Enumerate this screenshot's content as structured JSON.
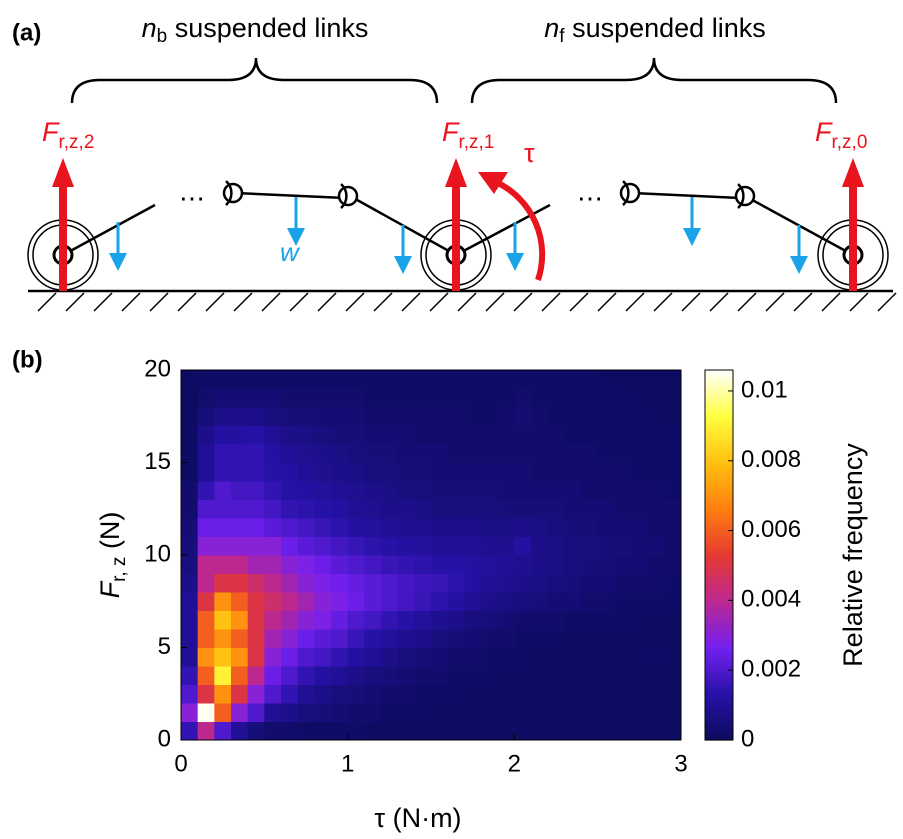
{
  "panel_a": {
    "label": "(a)",
    "left_group": {
      "symbol": "n",
      "sub": "b",
      "text": " suspended links"
    },
    "right_group": {
      "symbol": "n",
      "sub": "f",
      "text": " suspended links"
    },
    "forces": [
      {
        "symbol": "F",
        "sub": "r,z,2"
      },
      {
        "symbol": "F",
        "sub": "r,z,1"
      },
      {
        "symbol": "F",
        "sub": "r,z,0"
      }
    ],
    "torque": "τ",
    "weight": "w",
    "ellipsis": "⋯"
  },
  "chart_data": {
    "type": "heatmap",
    "panel_label": "(b)",
    "xlabel": "τ (N·m)",
    "ylabel": {
      "symbol": "F",
      "sub": "r, z",
      "unit": " (N)"
    },
    "colorbar_label": "Relative frequency",
    "xlim": [
      0,
      3
    ],
    "ylim": [
      0,
      20
    ],
    "xticks": [
      0,
      1,
      2,
      3
    ],
    "yticks": [
      0,
      5,
      10,
      15,
      20
    ],
    "clim": [
      0,
      0.0106
    ],
    "cticks": [
      0,
      0.002,
      0.004,
      0.006,
      0.008,
      0.01
    ],
    "colormap": [
      "#0b0b5c",
      "#2812a8",
      "#7420f0",
      "#bc2890",
      "#e63a30",
      "#ff8010",
      "#ffc010",
      "#ffff40",
      "#ffffff"
    ],
    "xbins": [
      0,
      0.1,
      0.2,
      0.3,
      0.4,
      0.5,
      0.6,
      0.7,
      0.8,
      0.9,
      1,
      1.1,
      1.2,
      1.3,
      1.4,
      1.5,
      1.6,
      1.7,
      1.8,
      1.9,
      2,
      2.1,
      2.2,
      2.3,
      2.4,
      2.5,
      2.6,
      2.7,
      2.8,
      2.9,
      3
    ],
    "ybins": [
      0,
      1,
      2,
      3,
      4,
      5,
      6,
      7,
      8,
      9,
      10,
      11,
      12,
      13,
      14,
      15,
      16,
      17,
      18,
      19,
      20
    ],
    "values": [
      [
        0.0015,
        0.003,
        0.002,
        0.0015,
        0.001,
        0.001,
        0.001,
        0.001,
        0.0008,
        0.0006,
        0.0005,
        0.0004,
        0.0003,
        0.0003,
        0.0002,
        0.0002,
        0.0002,
        0.0001,
        0.0001,
        0.0001
      ],
      [
        0.004,
        0.0105,
        0.005,
        0.006,
        0.007,
        0.006,
        0.006,
        0.005,
        0.004,
        0.004,
        0.003,
        0.0025,
        0.002,
        0.0015,
        0.001,
        0.001,
        0.0008,
        0.0005,
        0.0003,
        0.0002
      ],
      [
        0.002,
        0.006,
        0.007,
        0.009,
        0.008,
        0.007,
        0.008,
        0.007,
        0.005,
        0.004,
        0.003,
        0.0025,
        0.002,
        0.002,
        0.0015,
        0.0015,
        0.0012,
        0.0008,
        0.0004,
        0.0002
      ],
      [
        0.001,
        0.003,
        0.005,
        0.006,
        0.007,
        0.006,
        0.007,
        0.006,
        0.005,
        0.004,
        0.003,
        0.0025,
        0.002,
        0.0018,
        0.0015,
        0.0015,
        0.0012,
        0.0008,
        0.0004,
        0.0002
      ],
      [
        0.0005,
        0.002,
        0.003,
        0.004,
        0.005,
        0.005,
        0.005,
        0.005,
        0.0045,
        0.0035,
        0.003,
        0.0025,
        0.002,
        0.0018,
        0.0015,
        0.0015,
        0.0013,
        0.0008,
        0.0004,
        0.0002
      ],
      [
        0.0003,
        0.001,
        0.002,
        0.0025,
        0.003,
        0.0035,
        0.004,
        0.0045,
        0.004,
        0.0035,
        0.003,
        0.0022,
        0.0018,
        0.0015,
        0.0013,
        0.0012,
        0.001,
        0.0006,
        0.0004,
        0.0002
      ],
      [
        0.0003,
        0.0008,
        0.0015,
        0.002,
        0.0025,
        0.003,
        0.0035,
        0.004,
        0.0035,
        0.003,
        0.0025,
        0.002,
        0.0015,
        0.0013,
        0.0012,
        0.001,
        0.0008,
        0.0005,
        0.0003,
        0.0002
      ],
      [
        0.0002,
        0.0006,
        0.001,
        0.0015,
        0.002,
        0.0025,
        0.003,
        0.0035,
        0.003,
        0.0028,
        0.0022,
        0.0018,
        0.0014,
        0.0012,
        0.001,
        0.0009,
        0.0007,
        0.0005,
        0.0003,
        0.0002
      ],
      [
        0.0002,
        0.0005,
        0.0008,
        0.0012,
        0.0018,
        0.0022,
        0.0028,
        0.003,
        0.0028,
        0.0025,
        0.002,
        0.0016,
        0.0013,
        0.0011,
        0.0009,
        0.0008,
        0.0006,
        0.0004,
        0.0003,
        0.0002
      ],
      [
        0.0002,
        0.0004,
        0.0006,
        0.001,
        0.0015,
        0.002,
        0.0024,
        0.0028,
        0.0026,
        0.0022,
        0.0018,
        0.0014,
        0.0012,
        0.001,
        0.0008,
        0.0007,
        0.0005,
        0.0004,
        0.0003,
        0.0002
      ],
      [
        0.0002,
        0.0003,
        0.0005,
        0.0008,
        0.0012,
        0.0016,
        0.002,
        0.0025,
        0.0024,
        0.002,
        0.0016,
        0.0012,
        0.001,
        0.0009,
        0.0007,
        0.0006,
        0.0005,
        0.0004,
        0.0003,
        0.0002
      ],
      [
        0.0001,
        0.0003,
        0.0004,
        0.0006,
        0.001,
        0.0013,
        0.0018,
        0.0022,
        0.0022,
        0.0018,
        0.0014,
        0.0011,
        0.0009,
        0.0008,
        0.0006,
        0.0005,
        0.0004,
        0.0003,
        0.0002,
        0.0002
      ],
      [
        0.0001,
        0.0002,
        0.0003,
        0.0005,
        0.0008,
        0.0011,
        0.0015,
        0.002,
        0.002,
        0.0016,
        0.0013,
        0.001,
        0.0008,
        0.0007,
        0.0006,
        0.0005,
        0.0004,
        0.0003,
        0.0002,
        0.0002
      ],
      [
        0.0001,
        0.0002,
        0.0003,
        0.0004,
        0.0006,
        0.0009,
        0.0013,
        0.0018,
        0.0018,
        0.0015,
        0.0012,
        0.0009,
        0.0008,
        0.0006,
        0.0005,
        0.0004,
        0.0004,
        0.0003,
        0.0002,
        0.0002
      ],
      [
        0.0001,
        0.0002,
        0.0002,
        0.0003,
        0.0005,
        0.0008,
        0.0011,
        0.0016,
        0.0017,
        0.0014,
        0.0011,
        0.0009,
        0.0007,
        0.0006,
        0.0005,
        0.0004,
        0.0003,
        0.0003,
        0.0002,
        0.0002
      ],
      [
        0.0001,
        0.0001,
        0.0002,
        0.0003,
        0.0004,
        0.0006,
        0.0009,
        0.0014,
        0.0016,
        0.0013,
        0.001,
        0.0008,
        0.0006,
        0.0005,
        0.0004,
        0.0004,
        0.0003,
        0.0003,
        0.0002,
        0.0002
      ],
      [
        0.0001,
        0.0001,
        0.0002,
        0.0002,
        0.0003,
        0.0005,
        0.0008,
        0.0012,
        0.0014,
        0.0013,
        0.001,
        0.0008,
        0.0006,
        0.0005,
        0.0004,
        0.0003,
        0.0003,
        0.0003,
        0.0002,
        0.0002
      ],
      [
        0.0001,
        0.0001,
        0.0001,
        0.0002,
        0.0003,
        0.0004,
        0.0006,
        0.001,
        0.0012,
        0.0012,
        0.001,
        0.0008,
        0.0006,
        0.0005,
        0.0004,
        0.0003,
        0.0003,
        0.0002,
        0.0002,
        0.0002
      ],
      [
        0.0001,
        0.0001,
        0.0001,
        0.0002,
        0.0002,
        0.0003,
        0.0005,
        0.0008,
        0.001,
        0.0011,
        0.0009,
        0.0007,
        0.0006,
        0.0005,
        0.0004,
        0.0003,
        0.0003,
        0.0002,
        0.0002,
        0.0002
      ],
      [
        0.0001,
        0.0001,
        0.0001,
        0.0001,
        0.0002,
        0.0003,
        0.0004,
        0.0007,
        0.0009,
        0.001,
        0.0009,
        0.0007,
        0.0005,
        0.0004,
        0.0004,
        0.0003,
        0.0003,
        0.0003,
        0.0002,
        0.0002
      ],
      [
        0.0001,
        0.0001,
        0.0001,
        0.0001,
        0.0002,
        0.0002,
        0.0003,
        0.0006,
        0.0008,
        0.0009,
        0.0012,
        0.0008,
        0.0005,
        0.0004,
        0.0004,
        0.0003,
        0.0003,
        0.0004,
        0.0003,
        0.0002
      ],
      [
        0.0001,
        0.0001,
        0.0001,
        0.0001,
        0.0001,
        0.0002,
        0.0003,
        0.0005,
        0.0007,
        0.0008,
        0.0008,
        0.0007,
        0.0005,
        0.0004,
        0.0003,
        0.0003,
        0.0003,
        0.0003,
        0.0002,
        0.0002
      ],
      [
        0.0001,
        0.0001,
        0.0001,
        0.0001,
        0.0001,
        0.0002,
        0.0003,
        0.0004,
        0.0006,
        0.0007,
        0.0007,
        0.0006,
        0.0005,
        0.0004,
        0.0003,
        0.0003,
        0.0003,
        0.0002,
        0.0002,
        0.0002
      ],
      [
        0.0001,
        0.0001,
        0.0001,
        0.0001,
        0.0001,
        0.0001,
        0.0002,
        0.0004,
        0.0005,
        0.0006,
        0.0006,
        0.0005,
        0.0004,
        0.0004,
        0.0003,
        0.0003,
        0.0002,
        0.0002,
        0.0002,
        0.0002
      ],
      [
        0.0001,
        0.0001,
        0.0001,
        0.0001,
        0.0001,
        0.0001,
        0.0002,
        0.0003,
        0.0004,
        0.0005,
        0.0006,
        0.0005,
        0.0004,
        0.0003,
        0.0003,
        0.0003,
        0.0002,
        0.0002,
        0.0002,
        0.0002
      ],
      [
        0.0001,
        0.0001,
        0.0001,
        0.0001,
        0.0001,
        0.0001,
        0.0002,
        0.0003,
        0.0004,
        0.0005,
        0.0005,
        0.0004,
        0.0004,
        0.0003,
        0.0003,
        0.0002,
        0.0002,
        0.0002,
        0.0002,
        0.0001
      ],
      [
        0.0001,
        0.0001,
        0.0001,
        0.0001,
        0.0001,
        0.0001,
        0.0002,
        0.0002,
        0.0003,
        0.0004,
        0.0005,
        0.0004,
        0.0003,
        0.0003,
        0.0003,
        0.0002,
        0.0002,
        0.0002,
        0.0002,
        0.0001
      ],
      [
        0.0001,
        0.0001,
        0.0001,
        0.0001,
        0.0001,
        0.0001,
        0.0001,
        0.0002,
        0.0003,
        0.0004,
        0.0004,
        0.0004,
        0.0003,
        0.0003,
        0.0002,
        0.0002,
        0.0002,
        0.0002,
        0.0001,
        0.0001
      ],
      [
        0.0001,
        0.0001,
        0.0001,
        0.0001,
        0.0002,
        0.0001,
        0.0001,
        0.0002,
        0.0003,
        0.0003,
        0.0004,
        0.0003,
        0.0003,
        0.0003,
        0.0002,
        0.0002,
        0.0002,
        0.0001,
        0.0001,
        0.0001
      ],
      [
        0.0001,
        0.0001,
        0.0001,
        0.0001,
        0.0001,
        0.0001,
        0.0001,
        0.0002,
        0.0002,
        0.0003,
        0.0003,
        0.0003,
        0.0003,
        0.0002,
        0.0002,
        0.0002,
        0.0002,
        0.0001,
        0.0001,
        0.0001
      ]
    ]
  }
}
